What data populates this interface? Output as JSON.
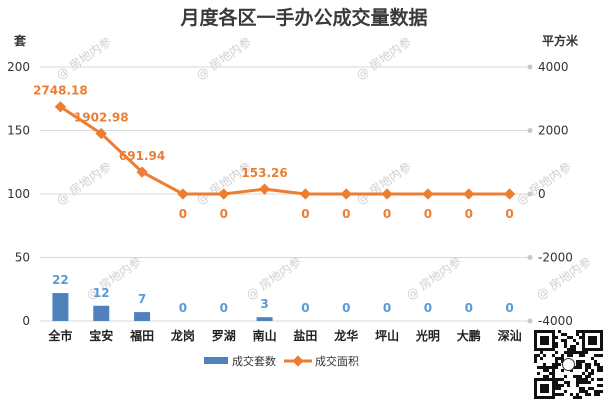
{
  "chart_data": {
    "type": "bar+line",
    "title": "月度各区一手办公成交量数据",
    "y_left_unit": "套",
    "y_right_unit": "平方米",
    "y_left_ticks": [
      "200",
      "150",
      "100",
      "50",
      "0"
    ],
    "y_right_ticks": [
      "4000",
      "2000",
      "0",
      "-2000",
      "-4000"
    ],
    "y_left_lim": [
      0,
      200
    ],
    "y_right_lim": [
      -4000,
      4000
    ],
    "categories": [
      "全市",
      "宝安",
      "福田",
      "龙岗",
      "罗湖",
      "南山",
      "盐田",
      "龙华",
      "坪山",
      "光明",
      "大鹏",
      "深汕"
    ],
    "series": [
      {
        "name": "成交套数",
        "type": "bar",
        "axis": "left",
        "color": "#4f81bd",
        "values": [
          22,
          12,
          7,
          0,
          0,
          3,
          0,
          0,
          0,
          0,
          0,
          0
        ],
        "labels": [
          "22",
          "12",
          "7",
          "0",
          "0",
          "3",
          "0",
          "0",
          "0",
          "0",
          "0",
          "0"
        ]
      },
      {
        "name": "成交面积",
        "type": "line",
        "axis": "right",
        "color": "#ed7d31",
        "values": [
          2748.18,
          1902.98,
          691.94,
          0,
          0,
          153.26,
          0,
          0,
          0,
          0,
          0,
          0
        ],
        "labels": [
          "2748.18",
          "1902.98",
          "691.94",
          "0",
          "0",
          "153.26",
          "0",
          "0",
          "0",
          "0",
          "0",
          "0"
        ]
      }
    ],
    "legend_position": "bottom",
    "watermark_text": "房地内参"
  }
}
